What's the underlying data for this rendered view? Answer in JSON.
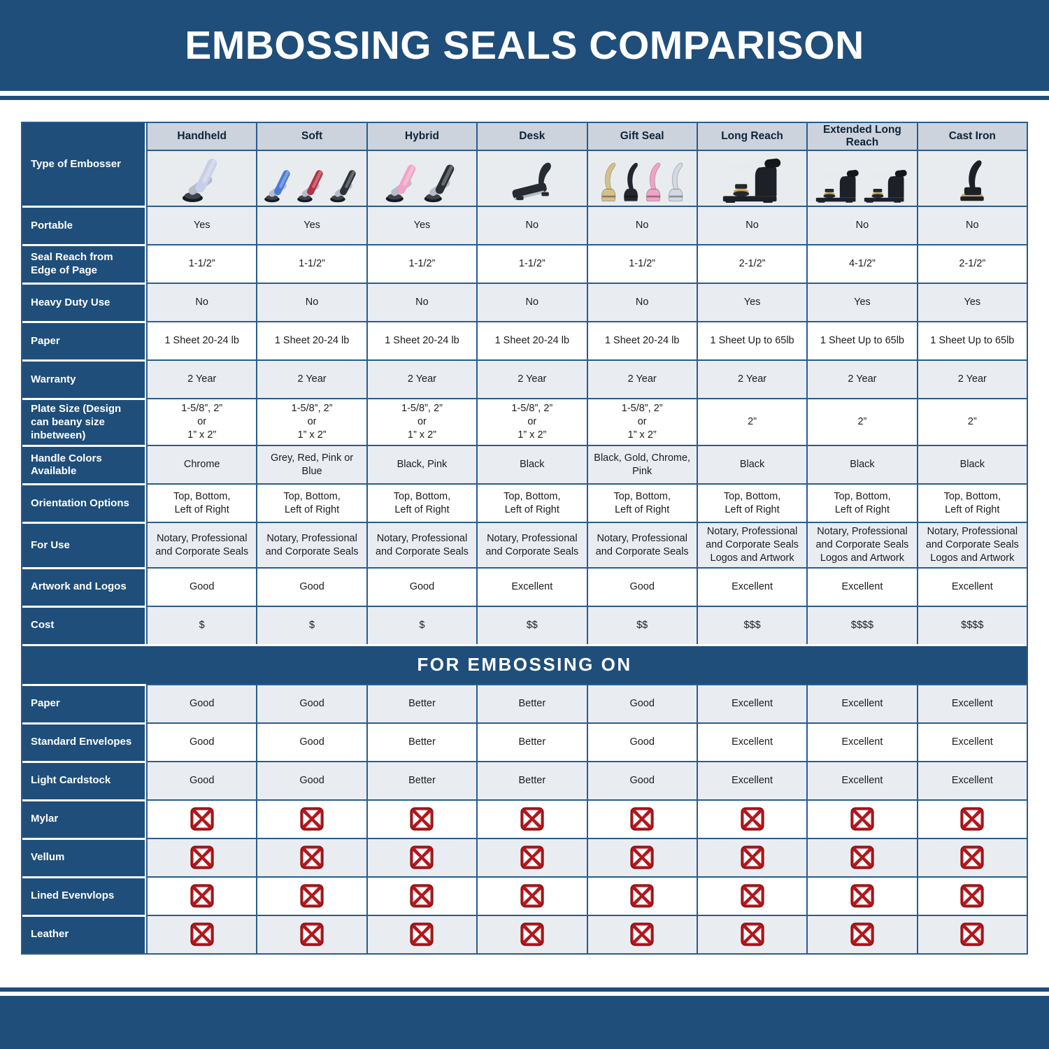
{
  "title": "EMBOSSING SEALS COMPARISON",
  "colors": {
    "navy": "#1f4e7a",
    "grid_line": "#2a5c8e",
    "header_bg": "#ccd3dc",
    "row_alt_bg": "#e9edf2",
    "x_red": "#b2171c",
    "x_red_dark": "#871013"
  },
  "table": {
    "corner_label": "Type of Embosser",
    "columns": [
      "Handheld",
      "Soft",
      "Hybrid",
      "Desk",
      "Gift Seal",
      "Long Reach",
      "Extended Long Reach",
      "Cast Iron"
    ],
    "section_title": "FOR EMBOSSING ON",
    "spec_rows": [
      {
        "label": "Portable",
        "values": [
          "Yes",
          "Yes",
          "Yes",
          "No",
          "No",
          "No",
          "No",
          "No"
        ]
      },
      {
        "label": "Seal Reach from Edge of Page",
        "values": [
          "1-1/2”",
          "1-1/2”",
          "1-1/2”",
          "1-1/2”",
          "1-1/2”",
          "2-1/2”",
          "4-1/2”",
          "2-1/2”"
        ]
      },
      {
        "label": "Heavy Duty Use",
        "values": [
          "No",
          "No",
          "No",
          "No",
          "No",
          "Yes",
          "Yes",
          "Yes"
        ]
      },
      {
        "label": "Paper",
        "values": [
          "1 Sheet 20-24 lb",
          "1 Sheet 20-24 lb",
          "1 Sheet 20-24 lb",
          "1 Sheet 20-24 lb",
          "1 Sheet 20-24 lb",
          "1 Sheet Up to 65lb",
          "1 Sheet Up to 65lb",
          "1 Sheet Up to 65lb"
        ]
      },
      {
        "label": "Warranty",
        "values": [
          "2 Year",
          "2 Year",
          "2 Year",
          "2 Year",
          "2 Year",
          "2 Year",
          "2 Year",
          "2 Year"
        ]
      },
      {
        "label": "Plate Size (Design can beany size inbetween)",
        "values": [
          "1-5/8”, 2”\nor\n1” x 2”",
          "1-5/8”, 2”\nor\n1” x 2”",
          "1-5/8”, 2”\nor\n1” x 2”",
          "1-5/8”, 2”\nor\n1” x 2”",
          "1-5/8”, 2”\nor\n1” x 2”",
          "2”",
          "2”",
          "2”"
        ]
      },
      {
        "label": "Handle Colors Available",
        "values": [
          "Chrome",
          "Grey, Red, Pink or Blue",
          "Black, Pink",
          "Black",
          "Black, Gold, Chrome, Pink",
          "Black",
          "Black",
          "Black"
        ]
      },
      {
        "label": "Orientation Options",
        "values": [
          "Top, Bottom,\nLeft of Right",
          "Top, Bottom,\nLeft of Right",
          "Top, Bottom,\nLeft of Right",
          "Top, Bottom,\nLeft of Right",
          "Top, Bottom,\nLeft of Right",
          "Top, Bottom,\nLeft of Right",
          "Top, Bottom,\nLeft of Right",
          "Top, Bottom,\nLeft of Right"
        ]
      },
      {
        "label": "For Use",
        "values": [
          "Notary, Professional\nand Corporate Seals",
          "Notary, Professional\nand Corporate Seals",
          "Notary, Professional\nand Corporate Seals",
          "Notary, Professional\nand Corporate Seals",
          "Notary, Professional\nand Corporate Seals",
          "Notary, Professional\nand Corporate Seals\nLogos and Artwork",
          "Notary, Professional\nand Corporate Seals\nLogos and Artwork",
          "Notary, Professional\nand Corporate Seals\nLogos and Artwork"
        ]
      },
      {
        "label": "Artwork and Logos",
        "values": [
          "Good",
          "Good",
          "Good",
          "Excellent",
          "Good",
          "Excellent",
          "Excellent",
          "Excellent"
        ]
      },
      {
        "label": "Cost",
        "values": [
          "$",
          "$",
          "$",
          "$$",
          "$$",
          "$$$",
          "$$$$",
          "$$$$"
        ]
      }
    ],
    "embossing_rows": [
      {
        "label": "Paper",
        "values": [
          "Good",
          "Good",
          "Better",
          "Better",
          "Good",
          "Excellent",
          "Excellent",
          "Excellent"
        ]
      },
      {
        "label": "Standard Envelopes",
        "values": [
          "Good",
          "Good",
          "Better",
          "Better",
          "Good",
          "Excellent",
          "Excellent",
          "Excellent"
        ]
      },
      {
        "label": "Light Cardstock",
        "values": [
          "Good",
          "Good",
          "Better",
          "Better",
          "Good",
          "Excellent",
          "Excellent",
          "Excellent"
        ]
      },
      {
        "label": "Mylar",
        "icon": "red-x-icon",
        "values": [
          "✗",
          "✗",
          "✗",
          "✗",
          "✗",
          "✗",
          "✗",
          "✗"
        ]
      },
      {
        "label": "Vellum",
        "icon": "red-x-icon",
        "values": [
          "✗",
          "✗",
          "✗",
          "✗",
          "✗",
          "✗",
          "✗",
          "✗"
        ]
      },
      {
        "label": "Lined Evenvlops",
        "icon": "red-x-icon",
        "values": [
          "✗",
          "✗",
          "✗",
          "✗",
          "✗",
          "✗",
          "✗",
          "✗"
        ]
      },
      {
        "label": "Leather",
        "icon": "red-x-icon",
        "values": [
          "✗",
          "✗",
          "✗",
          "✗",
          "✗",
          "✗",
          "✗",
          "✗"
        ]
      }
    ]
  },
  "embossers": [
    {
      "column": "Handheld",
      "icon": "handheld-embosser-image",
      "style": "plier",
      "colors": [
        "#c7cfe8"
      ]
    },
    {
      "column": "Soft",
      "icon": "soft-embosser-image",
      "style": "plier",
      "colors": [
        "#4a79d8",
        "#b23344",
        "#2e323b"
      ]
    },
    {
      "column": "Hybrid",
      "icon": "hybrid-embosser-image",
      "style": "plier",
      "colors": [
        "#f0a3c6",
        "#2b2f37"
      ]
    },
    {
      "column": "Desk",
      "icon": "desk-embosser-image",
      "style": "deskside",
      "colors": [
        "#262a32"
      ]
    },
    {
      "column": "Gift Seal",
      "icon": "gift-seal-embosser-image",
      "style": "gift",
      "colors": [
        "#d6c08a",
        "#23262e",
        "#f0a3c6",
        "#d3d9e4"
      ]
    },
    {
      "column": "Long Reach",
      "icon": "long-reach-embosser-image",
      "style": "press",
      "colors": [
        "#1d2127"
      ]
    },
    {
      "column": "Extended Long Reach",
      "icon": "extended-long-reach-embosser-image",
      "style": "press",
      "colors": [
        "#1d2127",
        "#1d2127"
      ]
    },
    {
      "column": "Cast Iron",
      "icon": "cast-iron-embosser-image",
      "style": "cast",
      "colors": [
        "#1d2127"
      ]
    }
  ]
}
